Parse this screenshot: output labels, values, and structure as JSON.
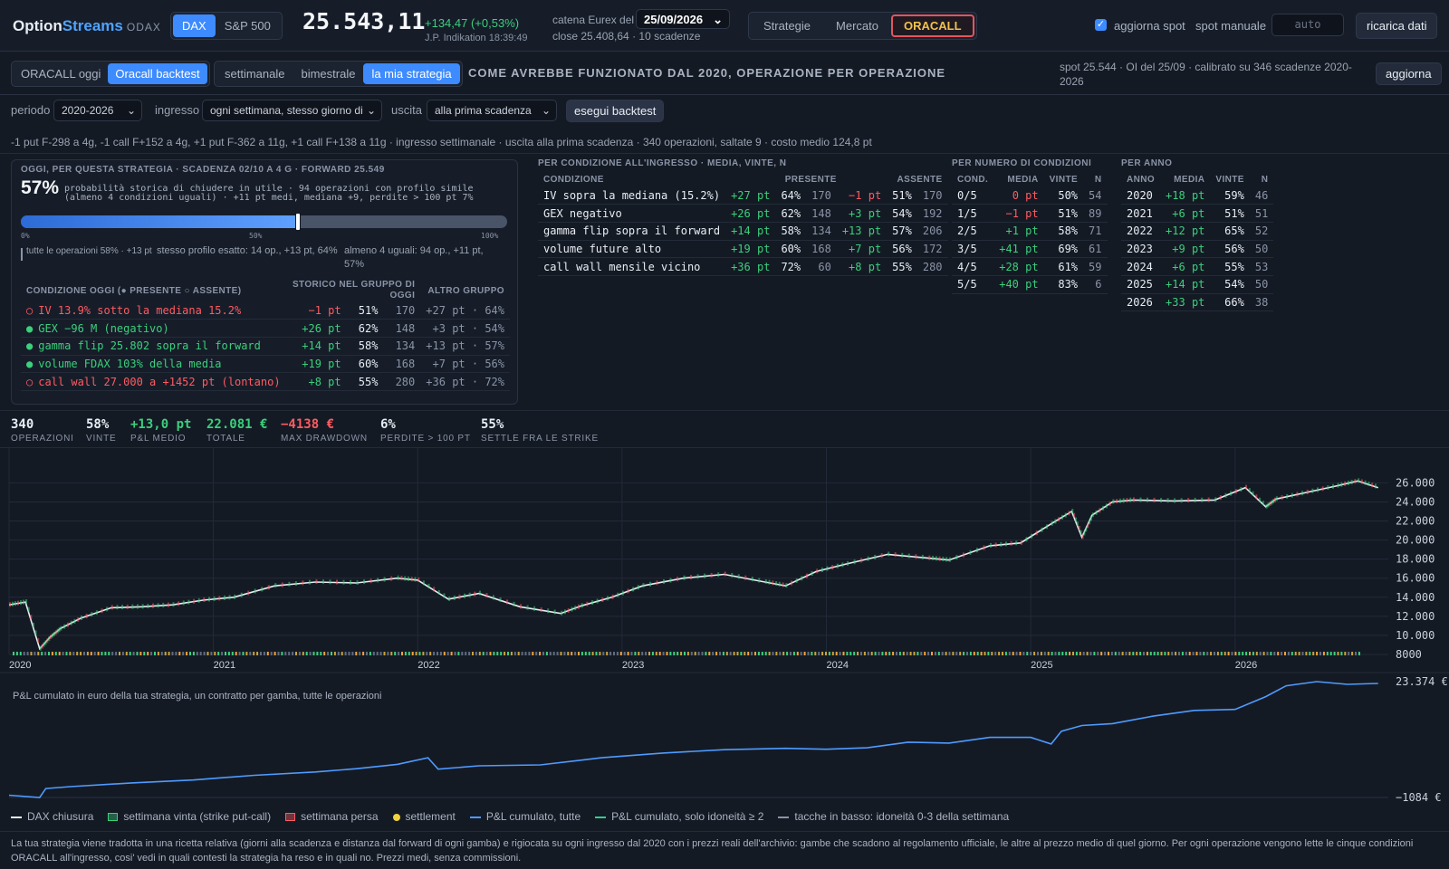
{
  "header": {
    "logo_a": "Option",
    "logo_b": "Streams",
    "logo_c": "ODAX",
    "index_tabs": [
      "DAX",
      "S&P 500"
    ],
    "price": "25.543,11",
    "change": "+134,47 (+0,53%)",
    "indikation": "J.P. Indikation 18:39:49",
    "catena_label": "catena Eurex del",
    "catena_date": "25/09/2026",
    "close_info": "close 25.408,64 · 10 scadenze",
    "nav_tabs": [
      "Strategie",
      "Mercato",
      "ORACALL"
    ],
    "aggiorna_spot": "aggiorna spot",
    "spot_manuale": "spot manuale",
    "spot_placeholder": "auto",
    "ricarica": "ricarica dati"
  },
  "subnav": {
    "tabs_a": [
      "ORACALL oggi",
      "Oracall backtest"
    ],
    "tabs_b": [
      "settimanale",
      "bimestrale",
      "la mia strategia"
    ],
    "heading": "COME AVREBBE FUNZIONATO DAL 2020, OPERAZIONE PER OPERAZIONE",
    "info": "spot 25.544 · OI del 25/09 · calibrato su 346 scadenze 2020-2026",
    "aggiorna": "aggiorna"
  },
  "controls": {
    "periodo_label": "periodo",
    "periodo": "2020-2026",
    "ingresso_label": "ingresso",
    "ingresso": "ogni settimana, stesso giorno di",
    "uscita_label": "uscita",
    "uscita": "alla prima scadenza",
    "run": "esegui backtest"
  },
  "summary_line": "-1 put F-298 a 4g, -1 call F+152 a 4g, +1 put F-362 a 11g, +1 call F+138 a 11g · ingresso settimanale · uscita alla prima scadenza · 340 operazioni, saltate 9 · costo medio 124,8 pt",
  "today_card": {
    "title": "OGGI, PER QUESTA STRATEGIA · SCADENZA 02/10 A 4 G · FORWARD 25.549",
    "prob": "57%",
    "desc1": "probabilità storica di chiudere in utile · 94 operazioni con profilo simile",
    "desc2": "(almeno 4 condizioni uguali) · +11 pt medi, mediana +9, perdite > 100 pt 7%",
    "probability_fraction": 0.57,
    "scale": [
      "0%",
      "50%",
      "100%"
    ],
    "note_a": "tutte le operazioni 58% · +13 pt",
    "note_b": "stesso profilo esatto: 14 op., +13 pt, 64%",
    "note_c": "almeno 4 uguali: 94 op., +11 pt, 57%",
    "cols": [
      "CONDIZIONE OGGI (● PRESENTE ○ ASSENTE)",
      "STORICO NEL GRUPPO DI OGGI",
      "ALTRO GRUPPO"
    ],
    "rows": [
      {
        "mark": "○",
        "cond": "IV 13.9% sotto la mediana 15.2%",
        "pt": "−1 pt",
        "pct": "51%",
        "n": "170",
        "alt": "+27 pt · 64%",
        "present": false
      },
      {
        "mark": "●",
        "cond": "GEX −96 M (negativo)",
        "pt": "+26 pt",
        "pct": "62%",
        "n": "148",
        "alt": "+3 pt · 54%",
        "present": true
      },
      {
        "mark": "●",
        "cond": "gamma flip 25.802 sopra il forward",
        "pt": "+14 pt",
        "pct": "58%",
        "n": "134",
        "alt": "+13 pt · 57%",
        "present": true
      },
      {
        "mark": "●",
        "cond": "volume FDAX 103% della media",
        "pt": "+19 pt",
        "pct": "60%",
        "n": "168",
        "alt": "+7 pt · 56%",
        "present": true
      },
      {
        "mark": "○",
        "cond": "call wall 27.000 a +1452 pt (lontano)",
        "pt": "+8 pt",
        "pct": "55%",
        "n": "280",
        "alt": "+36 pt · 72%",
        "present": false
      }
    ]
  },
  "cond_table": {
    "title": "PER CONDIZIONE ALL'INGRESSO · MEDIA, VINTE, N",
    "cols": [
      "CONDIZIONE",
      "PRESENTE",
      "ASSENTE"
    ],
    "rows": [
      {
        "cond": "IV sopra la mediana (15.2%)",
        "pm": "+27 pt",
        "pv": "64%",
        "pn": "170",
        "am": "−1 pt",
        "av": "51%",
        "an": "170"
      },
      {
        "cond": "GEX negativo",
        "pm": "+26 pt",
        "pv": "62%",
        "pn": "148",
        "am": "+3 pt",
        "av": "54%",
        "an": "192"
      },
      {
        "cond": "gamma flip sopra il forward",
        "pm": "+14 pt",
        "pv": "58%",
        "pn": "134",
        "am": "+13 pt",
        "av": "57%",
        "an": "206"
      },
      {
        "cond": "volume future alto",
        "pm": "+19 pt",
        "pv": "60%",
        "pn": "168",
        "am": "+7 pt",
        "av": "56%",
        "an": "172"
      },
      {
        "cond": "call wall mensile vicino",
        "pm": "+36 pt",
        "pv": "72%",
        "pn": "60",
        "am": "+8 pt",
        "av": "55%",
        "an": "280"
      }
    ]
  },
  "count_table": {
    "title": "PER NUMERO DI CONDIZIONI",
    "cols": [
      "COND.",
      "MEDIA",
      "VINTE",
      "N"
    ],
    "rows": [
      [
        "0/5",
        "0 pt",
        "50%",
        "54"
      ],
      [
        "1/5",
        "−1 pt",
        "51%",
        "89"
      ],
      [
        "2/5",
        "+1 pt",
        "58%",
        "71"
      ],
      [
        "3/5",
        "+41 pt",
        "69%",
        "61"
      ],
      [
        "4/5",
        "+28 pt",
        "61%",
        "59"
      ],
      [
        "5/5",
        "+40 pt",
        "83%",
        "6"
      ]
    ]
  },
  "year_table": {
    "title": "PER ANNO",
    "cols": [
      "ANNO",
      "MEDIA",
      "VINTE",
      "N"
    ],
    "rows": [
      [
        "2020",
        "+18 pt",
        "59%",
        "46"
      ],
      [
        "2021",
        "+6 pt",
        "51%",
        "51"
      ],
      [
        "2022",
        "+12 pt",
        "65%",
        "52"
      ],
      [
        "2023",
        "+9 pt",
        "56%",
        "50"
      ],
      [
        "2024",
        "+6 pt",
        "55%",
        "53"
      ],
      [
        "2025",
        "+14 pt",
        "54%",
        "50"
      ],
      [
        "2026",
        "+33 pt",
        "66%",
        "38"
      ]
    ]
  },
  "stats": [
    {
      "v": "340",
      "k": "OPERAZIONI",
      "c": "#e8edf3"
    },
    {
      "v": "58%",
      "k": "VINTE",
      "c": "#e8edf3"
    },
    {
      "v": "+13,0 pt",
      "k": "P&L MEDIO",
      "c": "#3ccf7c"
    },
    {
      "v": "22.081 €",
      "k": "TOTALE",
      "c": "#3ccf7c"
    },
    {
      "v": "−4138 €",
      "k": "MAX DRAWDOWN",
      "c": "#ff5b61"
    },
    {
      "v": "6%",
      "k": "PERDITE > 100 PT",
      "c": "#e8edf3"
    },
    {
      "v": "55%",
      "k": "SETTLE FRA LE STRIKE",
      "c": "#e8edf3"
    }
  ],
  "chart_data": [
    {
      "type": "line",
      "series": [
        {
          "name": "DAX chiusura"
        }
      ],
      "x": [
        2020.0,
        2020.08,
        2020.15,
        2020.2,
        2020.25,
        2020.35,
        2020.5,
        2020.65,
        2020.8,
        2020.95,
        2021.1,
        2021.3,
        2021.5,
        2021.7,
        2021.9,
        2022.0,
        2022.15,
        2022.3,
        2022.5,
        2022.7,
        2022.8,
        2022.95,
        2023.1,
        2023.3,
        2023.5,
        2023.7,
        2023.8,
        2023.95,
        2024.1,
        2024.3,
        2024.5,
        2024.6,
        2024.8,
        2024.95,
        2025.1,
        2025.2,
        2025.25,
        2025.3,
        2025.4,
        2025.5,
        2025.7,
        2025.9,
        2026.05,
        2026.15,
        2026.2,
        2026.35,
        2026.5,
        2026.6,
        2026.7
      ],
      "y": [
        13200,
        13500,
        8600,
        9800,
        10700,
        11800,
        12900,
        13000,
        13200,
        13700,
        14000,
        15200,
        15600,
        15500,
        16000,
        15800,
        13800,
        14400,
        13000,
        12300,
        13100,
        14000,
        15200,
        16000,
        16400,
        15600,
        15200,
        16700,
        17500,
        18500,
        18100,
        17900,
        19400,
        19700,
        21700,
        23000,
        20300,
        22600,
        24000,
        24200,
        24100,
        24200,
        25500,
        23500,
        24300,
        25000,
        25700,
        26200,
        25500
      ],
      "yticks": [
        "26.000",
        "24.000",
        "22.000",
        "20.000",
        "18.000",
        "16.000",
        "14.000",
        "12.000",
        "10.000",
        "8000"
      ],
      "xticks": [
        "2020",
        "2021",
        "2022",
        "2023",
        "2024",
        "2025",
        "2026"
      ],
      "ylim": [
        8000,
        26800
      ],
      "xlim": [
        2020,
        2026.75
      ]
    },
    {
      "type": "line",
      "title": "P&L cumulato in euro della tua strategia, un contratto per gamba, tutte le operazioni",
      "series": [
        {
          "name": "P&L cumulato, tutte"
        }
      ],
      "x": [
        2020.0,
        2020.15,
        2020.18,
        2020.3,
        2020.6,
        2020.9,
        2021.2,
        2021.5,
        2021.7,
        2021.9,
        2022.05,
        2022.1,
        2022.3,
        2022.6,
        2022.9,
        2023.2,
        2023.5,
        2023.8,
        2024.0,
        2024.2,
        2024.4,
        2024.6,
        2024.8,
        2025.0,
        2025.1,
        2025.15,
        2025.25,
        2025.4,
        2025.6,
        2025.8,
        2026.0,
        2026.15,
        2026.25,
        2026.4,
        2026.55,
        2026.7
      ],
      "y": [
        -600,
        -1084,
        800,
        1200,
        2000,
        2600,
        3600,
        4300,
        5000,
        5900,
        7300,
        4900,
        5600,
        5800,
        7300,
        8300,
        9000,
        9300,
        9100,
        9400,
        10600,
        10400,
        11600,
        11600,
        10200,
        12900,
        14100,
        14500,
        16100,
        17300,
        17500,
        20200,
        22500,
        23374,
        22800,
        23000
      ],
      "yticks": [
        "23.374 €",
        "−1084 €"
      ],
      "ylim": [
        -1084,
        23374
      ],
      "xlim": [
        2020,
        2026.75
      ]
    }
  ],
  "legend": [
    {
      "label": "DAX chiusura",
      "kind": "line",
      "color": "#e8edf3"
    },
    {
      "label": "settimana vinta (strike put-call)",
      "kind": "box",
      "color": "#3ccf7c"
    },
    {
      "label": "settimana persa",
      "kind": "box",
      "color": "#ff5b61"
    },
    {
      "label": "settlement",
      "kind": "dot",
      "color": "#f2d23c"
    },
    {
      "label": "P&L cumulato, tutte",
      "kind": "line",
      "color": "#4f9bff"
    },
    {
      "label": "P&L cumulato, solo idoneità ≥ 2",
      "kind": "line",
      "color": "#2fcf8f"
    },
    {
      "label": "tacche in basso: idoneità 0-3 della settimana",
      "kind": "line",
      "color": "#8a94a6"
    }
  ],
  "footer": "La tua strategia viene tradotta in una ricetta relativa (giorni alla scadenza e distanza dal forward di ogni gamba) e rigiocata su ogni ingresso dal 2020 con i prezzi reali dell'archivio: gambe che scadono al regolamento ufficiale, le altre al prezzo medio di quel giorno. Per ogni operazione vengono lette le cinque condizioni ORACALL all'ingresso, cosi' vedi in quali contesti la strategia ha reso e in quali no. Prezzi medi, senza commissioni."
}
